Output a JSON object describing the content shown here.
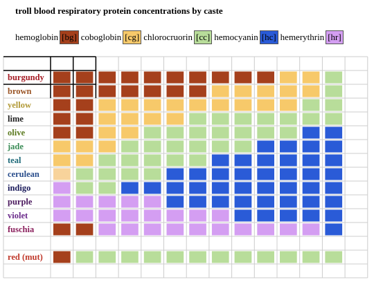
{
  "title": "troll blood respiratory protein concentrations by caste",
  "legend": [
    {
      "name": "hemoglobin",
      "code": "[bg]",
      "color": "#a5401c"
    },
    {
      "name": "coboglobin",
      "code": "[cg]",
      "color": "#f7c96a"
    },
    {
      "name": "chlorocruorin",
      "code": "[cc]",
      "color": "#b8dd9a"
    },
    {
      "name": "hemocyanin",
      "code": "[hc]",
      "color": "#2a5bd7"
    },
    {
      "name": "hemerythrin",
      "code": "[hr]",
      "color": "#d49ef2"
    }
  ],
  "rows": [
    {
      "label": "burgundy",
      "color": "#a51c24",
      "cells": [
        "#a5401c",
        "#a5401c",
        "#a5401c",
        "#a5401c",
        "#a5401c",
        "#a5401c",
        "#a5401c",
        "#a5401c",
        "#a5401c",
        "#a5401c",
        "#f7c96a",
        "#f7c96a",
        "#b8dd9a"
      ]
    },
    {
      "label": "brown",
      "color": "#9a5526",
      "cells": [
        "#a5401c",
        "#a5401c",
        "#a5401c",
        "#a5401c",
        "#a5401c",
        "#a5401c",
        "#a5401c",
        "#f7c96a",
        "#f7c96a",
        "#f7c96a",
        "#f7c96a",
        "#f7c96a",
        "#b8dd9a"
      ]
    },
    {
      "label": "yellow",
      "color": "#b29a38",
      "cells": [
        "#a5401c",
        "#a5401c",
        "#f7c96a",
        "#f7c96a",
        "#f7c96a",
        "#f7c96a",
        "#f7c96a",
        "#f7c96a",
        "#f7c96a",
        "#f7c96a",
        "#f7c96a",
        "#b8dd9a",
        "#b8dd9a"
      ]
    },
    {
      "label": "lime",
      "color": "#222222",
      "cells": [
        "#a5401c",
        "#a5401c",
        "#f7c96a",
        "#f7c96a",
        "#f7c96a",
        "#f7c96a",
        "#b8dd9a",
        "#b8dd9a",
        "#b8dd9a",
        "#b8dd9a",
        "#b8dd9a",
        "#b8dd9a",
        "#b8dd9a"
      ]
    },
    {
      "label": "olive",
      "color": "#5b7a1f",
      "cells": [
        "#a5401c",
        "#a5401c",
        "#f7c96a",
        "#f7c96a",
        "#b8dd9a",
        "#b8dd9a",
        "#b8dd9a",
        "#b8dd9a",
        "#b8dd9a",
        "#b8dd9a",
        "#b8dd9a",
        "#2a5bd7",
        "#2a5bd7"
      ]
    },
    {
      "label": "jade",
      "color": "#3a8c56",
      "cells": [
        "#f7c96a",
        "#f7c96a",
        "#f7c96a",
        "#b8dd9a",
        "#b8dd9a",
        "#b8dd9a",
        "#b8dd9a",
        "#b8dd9a",
        "#b8dd9a",
        "#2a5bd7",
        "#2a5bd7",
        "#2a5bd7",
        "#2a5bd7"
      ]
    },
    {
      "label": "teal",
      "color": "#1f6a7a",
      "cells": [
        "#f7c96a",
        "#f7c96a",
        "#b8dd9a",
        "#b8dd9a",
        "#b8dd9a",
        "#b8dd9a",
        "#b8dd9a",
        "#2a5bd7",
        "#2a5bd7",
        "#2a5bd7",
        "#2a5bd7",
        "#2a5bd7",
        "#2a5bd7"
      ]
    },
    {
      "label": "cerulean",
      "color": "#2a4e8c",
      "cells": [
        "#f8d39b",
        "#b8dd9a",
        "#b8dd9a",
        "#b8dd9a",
        "#b8dd9a",
        "#2a5bd7",
        "#2a5bd7",
        "#2a5bd7",
        "#2a5bd7",
        "#2a5bd7",
        "#2a5bd7",
        "#2a5bd7",
        "#2a5bd7"
      ]
    },
    {
      "label": "indigo",
      "color": "#1a1a5a",
      "cells": [
        "#d49ef2",
        "#b8dd9a",
        "#b8dd9a",
        "#2a5bd7",
        "#2a5bd7",
        "#2a5bd7",
        "#2a5bd7",
        "#2a5bd7",
        "#2a5bd7",
        "#2a5bd7",
        "#2a5bd7",
        "#2a5bd7",
        "#2a5bd7"
      ]
    },
    {
      "label": "purple",
      "color": "#4b1a5e",
      "cells": [
        "#d49ef2",
        "#d49ef2",
        "#d49ef2",
        "#d49ef2",
        "#d49ef2",
        "#2a5bd7",
        "#2a5bd7",
        "#2a5bd7",
        "#2a5bd7",
        "#2a5bd7",
        "#2a5bd7",
        "#2a5bd7",
        "#2a5bd7"
      ]
    },
    {
      "label": "violet",
      "color": "#6a2a8a",
      "cells": [
        "#d49ef2",
        "#d49ef2",
        "#d49ef2",
        "#d49ef2",
        "#d49ef2",
        "#d49ef2",
        "#d49ef2",
        "#d49ef2",
        "#2a5bd7",
        "#2a5bd7",
        "#2a5bd7",
        "#2a5bd7",
        "#2a5bd7"
      ]
    },
    {
      "label": "fuschia",
      "color": "#8a1f5c",
      "cells": [
        "#a5401c",
        "#a5401c",
        "#d49ef2",
        "#d49ef2",
        "#d49ef2",
        "#d49ef2",
        "#d49ef2",
        "#d49ef2",
        "#d49ef2",
        "#d49ef2",
        "#d49ef2",
        "#d49ef2",
        "#2a5bd7"
      ]
    }
  ],
  "mut_rows": [
    {
      "label": "red (mut)",
      "color": "#c0392b",
      "cells": [
        "#a5401c",
        "#b8dd9a",
        "#b8dd9a",
        "#b8dd9a",
        "#b8dd9a",
        "#b8dd9a",
        "#b8dd9a",
        "#b8dd9a",
        "#b8dd9a",
        "#b8dd9a",
        "#b8dd9a",
        "#b8dd9a",
        "#b8dd9a"
      ]
    }
  ]
}
